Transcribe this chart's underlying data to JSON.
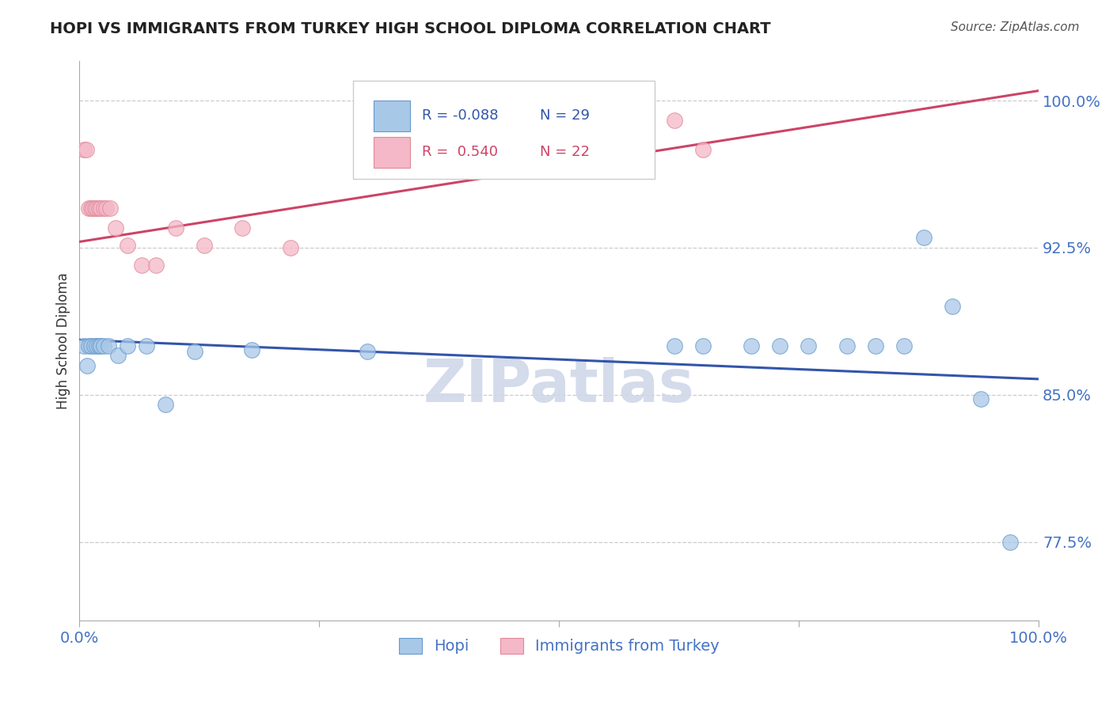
{
  "title": "HOPI VS IMMIGRANTS FROM TURKEY HIGH SCHOOL DIPLOMA CORRELATION CHART",
  "source_text": "Source: ZipAtlas.com",
  "ylabel": "High School Diploma",
  "xlim": [
    0.0,
    1.0
  ],
  "ylim": [
    0.735,
    1.02
  ],
  "yticks": [
    0.775,
    0.85,
    0.925,
    1.0
  ],
  "ytick_labels": [
    "77.5%",
    "85.0%",
    "92.5%",
    "100.0%"
  ],
  "xticks": [
    0.0,
    0.25,
    0.5,
    0.75,
    1.0
  ],
  "xtick_labels": [
    "0.0%",
    "",
    "",
    "",
    "100.0%"
  ],
  "title_color": "#222222",
  "axis_color": "#4472C4",
  "blue_color": "#a8c8e8",
  "pink_color": "#f4b8c8",
  "blue_edge_color": "#6699cc",
  "pink_edge_color": "#e08898",
  "blue_line_color": "#3355aa",
  "pink_line_color": "#cc4466",
  "watermark_color": "#d0d8e8",
  "legend_R_blue": "-0.088",
  "legend_N_blue": "29",
  "legend_R_pink": "0.540",
  "legend_N_pink": "22",
  "legend_label_blue": "Hopi",
  "legend_label_pink": "Immigrants from Turkey",
  "hopi_x": [
    0.005,
    0.008,
    0.01,
    0.012,
    0.015,
    0.018,
    0.02,
    0.022,
    0.025,
    0.03,
    0.04,
    0.05,
    0.07,
    0.09,
    0.12,
    0.18,
    0.3,
    0.62,
    0.65,
    0.7,
    0.73,
    0.76,
    0.8,
    0.83,
    0.86,
    0.88,
    0.91,
    0.94,
    0.97
  ],
  "hopi_y": [
    0.875,
    0.865,
    0.875,
    0.875,
    0.875,
    0.875,
    0.875,
    0.875,
    0.875,
    0.875,
    0.87,
    0.875,
    0.875,
    0.845,
    0.872,
    0.873,
    0.872,
    0.875,
    0.875,
    0.875,
    0.875,
    0.875,
    0.875,
    0.875,
    0.875,
    0.93,
    0.895,
    0.848,
    0.775
  ],
  "turkey_x": [
    0.005,
    0.007,
    0.01,
    0.012,
    0.014,
    0.016,
    0.018,
    0.02,
    0.022,
    0.025,
    0.028,
    0.032,
    0.038,
    0.05,
    0.065,
    0.08,
    0.1,
    0.13,
    0.17,
    0.22,
    0.62,
    0.65
  ],
  "turkey_y": [
    0.975,
    0.975,
    0.945,
    0.945,
    0.945,
    0.945,
    0.945,
    0.945,
    0.945,
    0.945,
    0.945,
    0.945,
    0.935,
    0.926,
    0.916,
    0.916,
    0.935,
    0.926,
    0.935,
    0.925,
    0.99,
    0.975
  ],
  "blue_trendline_x": [
    0.0,
    1.0
  ],
  "blue_trendline_y": [
    0.878,
    0.858
  ],
  "pink_trendline_x": [
    0.0,
    1.0
  ],
  "pink_trendline_y": [
    0.928,
    1.005
  ]
}
